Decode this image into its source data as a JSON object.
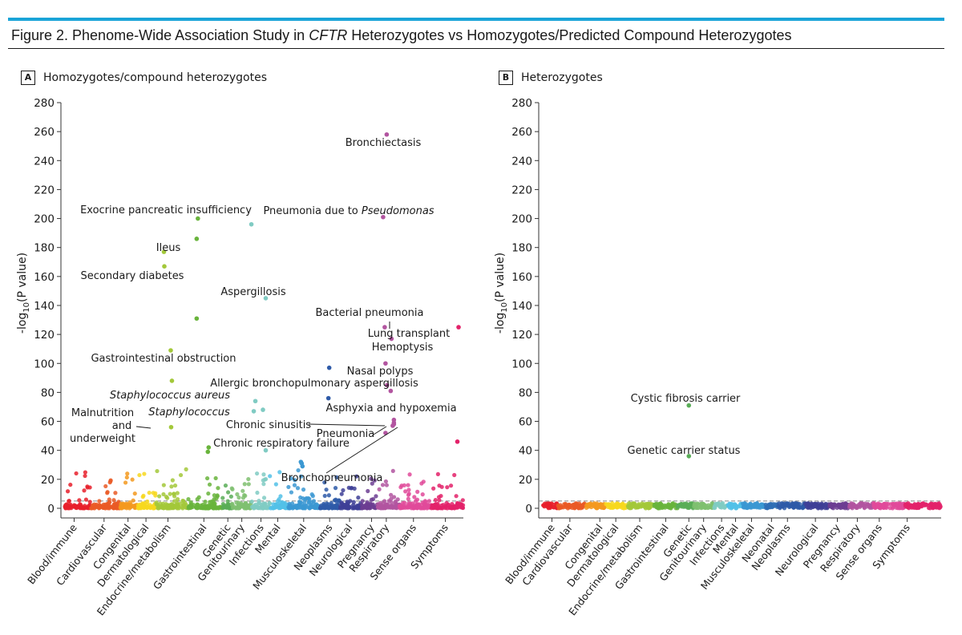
{
  "figure": {
    "title_prefix": "Figure 2. Phenome-Wide Association Study in ",
    "title_gene": "CFTR",
    "title_suffix": " Heterozygotes vs Homozygotes/Predicted Compound Heterozygotes",
    "accent_color": "#1aa4d8"
  },
  "panels": {
    "a": {
      "letter": "A",
      "title": "Homozygotes/compound heterozygotes"
    },
    "b": {
      "letter": "B",
      "title": "Heterozygotes"
    }
  },
  "chart_data": [
    {
      "type": "scatter",
      "panel": "A",
      "title": "Homozygotes/compound heterozygotes",
      "ylabel": "-log10(P value)",
      "ylabel_main": "-log",
      "ylabel_sub": "10",
      "ylabel_tail": "(P value)",
      "ylim": [
        -5,
        280
      ],
      "yticks": [
        0,
        20,
        40,
        60,
        80,
        100,
        120,
        140,
        160,
        180,
        200,
        220,
        240,
        260,
        280
      ],
      "threshold": 5,
      "x_extent": [
        0,
        100
      ],
      "categories": [
        {
          "name": "Blood/immune",
          "color": "#e8202c",
          "start": 0,
          "end": 6.5,
          "tick": 2.5
        },
        {
          "name": "Cardiovascular",
          "color": "#ea5a26",
          "start": 6.5,
          "end": 14,
          "tick": 10
        },
        {
          "name": "Congenital",
          "color": "#f3991f",
          "start": 14,
          "end": 18.5,
          "tick": 16
        },
        {
          "name": "Dermatological",
          "color": "#f7d81e",
          "start": 18.5,
          "end": 23,
          "tick": 20.5
        },
        {
          "name": "Endocrine/metabolism",
          "color": "#a3c83a",
          "start": 23,
          "end": 31,
          "tick": 26
        },
        {
          "name": "Gastrointestinal",
          "color": "#69b43c",
          "start": 31,
          "end": 39.5,
          "tick": 35
        },
        {
          "name": "Genetic",
          "color": "#59ad57",
          "start": 39.5,
          "end": 42,
          "tick": 41
        },
        {
          "name": "Genitourinary",
          "color": "#7fbf70",
          "start": 42,
          "end": 47,
          "tick": 44.5
        },
        {
          "name": "Infections",
          "color": "#80cbc3",
          "start": 47,
          "end": 51.5,
          "tick": 49.3
        },
        {
          "name": "Mental",
          "color": "#52c1e8",
          "start": 51.5,
          "end": 56,
          "tick": 53.5
        },
        {
          "name": "Musculoskeletal",
          "color": "#3b98d2",
          "start": 56,
          "end": 64,
          "tick": 60
        },
        {
          "name": "Neoplasms",
          "color": "#2e5aa8",
          "start": 64,
          "end": 69,
          "tick": 66.5
        },
        {
          "name": "Neurological",
          "color": "#3e3f97",
          "start": 69,
          "end": 74.5,
          "tick": 71.5
        },
        {
          "name": "Pregnancy",
          "color": "#6c3d92",
          "start": 74.5,
          "end": 78.5,
          "tick": 77
        },
        {
          "name": "Respiratory",
          "color": "#b255a0",
          "start": 78.5,
          "end": 84,
          "tick": 80.7
        },
        {
          "name": "Sense organs",
          "color": "#e04a9a",
          "start": 84,
          "end": 92,
          "tick": 87.5
        },
        {
          "name": "Symptoms",
          "color": "#e3226a",
          "start": 92,
          "end": 100,
          "tick": 95.5
        }
      ],
      "highlights": [
        {
          "label": "Bronchiectasis",
          "x": 80.8,
          "y": 258,
          "category": "Respiratory"
        },
        {
          "label": "Exocrine pancreatic insufficiency",
          "x": 33.5,
          "y": 200,
          "category": "Gastrointestinal"
        },
        {
          "label": "Pneumonia due to Pseudomonas",
          "x": 79.9,
          "y": 201,
          "category": "Respiratory"
        },
        {
          "label": "Ileus",
          "x": 33.2,
          "y": 186,
          "category": "Gastrointestinal"
        },
        {
          "label": "Secondary diabetes",
          "x": 25.1,
          "y": 167,
          "category": "Endocrine/metabolism"
        },
        {
          "label": "Aspergillosis",
          "x": 50.5,
          "y": 145,
          "category": "Infections"
        },
        {
          "label": "Bacterial pneumonia",
          "x": 80.3,
          "y": 125,
          "category": "Respiratory"
        },
        {
          "label": "Lung transplant",
          "x": 82.0,
          "y": 117,
          "category": "Respiratory"
        },
        {
          "label": "Hemoptysis",
          "x": 80.5,
          "y": 100,
          "category": "Respiratory"
        },
        {
          "label": "Gastrointestinal obstruction",
          "x": 26.7,
          "y": 109,
          "category": "Endocrine/metabolism"
        },
        {
          "label": "Nasal polyps",
          "x": 80.9,
          "y": 85,
          "category": "Respiratory"
        },
        {
          "label": "Allergic bronchopulmonary aspergillosis",
          "x": 81.8,
          "y": 81,
          "category": "Respiratory"
        },
        {
          "label": "Staphylococcus aureus",
          "x": 27.0,
          "y": 88,
          "category": "Endocrine/metabolism"
        },
        {
          "label": "Asphyxia and hypoxemia",
          "x": 82.6,
          "y": 61,
          "category": "Respiratory"
        },
        {
          "label": "Staphylococcus",
          "x": 47.9,
          "y": 74,
          "category": "Infections"
        },
        {
          "label": "Chronic sinusitis",
          "x": 82.6,
          "y": 58,
          "category": "Respiratory"
        },
        {
          "label": "Malnutrition and underweight",
          "x": 26.8,
          "y": 56,
          "category": "Endocrine/metabolism"
        },
        {
          "label": "Pneumonia",
          "x": 82.3,
          "y": 57,
          "category": "Respiratory"
        },
        {
          "label": "Chronic respiratory failure",
          "x": 80.5,
          "y": 52,
          "category": "Respiratory"
        },
        {
          "label": "Bronchopneumonia",
          "x": 82.6,
          "y": 59,
          "category": "Respiratory"
        }
      ],
      "other_points": [
        {
          "x": 25.0,
          "y": 177,
          "category": "Endocrine/metabolism"
        },
        {
          "x": 46.9,
          "y": 196,
          "category": "Infections"
        },
        {
          "x": 33.2,
          "y": 131,
          "category": "Gastrointestinal"
        },
        {
          "x": 98.8,
          "y": 125,
          "category": "Symptoms"
        },
        {
          "x": 66.4,
          "y": 97,
          "category": "Neoplasms"
        },
        {
          "x": 66.2,
          "y": 76,
          "category": "Neoplasms"
        },
        {
          "x": 98.5,
          "y": 46,
          "category": "Symptoms"
        },
        {
          "x": 50.5,
          "y": 40,
          "category": "Infections"
        },
        {
          "x": 36.2,
          "y": 42,
          "category": "Gastrointestinal"
        },
        {
          "x": 36.0,
          "y": 39,
          "category": "Gastrointestinal"
        },
        {
          "x": 59.5,
          "y": 31,
          "category": "Musculoskeletal"
        },
        {
          "x": 59.7,
          "y": 29,
          "category": "Musculoskeletal"
        },
        {
          "x": 59.3,
          "y": 32,
          "category": "Musculoskeletal"
        },
        {
          "x": 49.8,
          "y": 68,
          "category": "Infections"
        },
        {
          "x": 47.5,
          "y": 67,
          "category": "Infections"
        }
      ],
      "annotations": [
        {
          "text": "Bronchiectasis",
          "ax": 1.2,
          "ay": -6
        },
        {
          "text": "Exocrine pancreatic insufficiency",
          "ax": -22,
          "ay": 5
        },
        {
          "text": "Pneumonia due to ",
          "italic_tail": "Pseudomonas",
          "ax": -22,
          "ay": 0
        },
        {
          "text": "Ileus",
          "ax": 0.5,
          "ay": -5
        },
        {
          "text": "Secondary diabetes",
          "ax": -13,
          "ay": -8
        },
        {
          "text": "Aspergillosis",
          "ax": -4,
          "ay": 4
        }
      ]
    },
    {
      "type": "scatter",
      "panel": "B",
      "title": "Heterozygotes",
      "ylabel": "-log10(P value)",
      "ylabel_main": "-log",
      "ylabel_sub": "10",
      "ylabel_tail": "(P value)",
      "ylim": [
        -5,
        280
      ],
      "yticks": [
        0,
        20,
        40,
        60,
        80,
        100,
        120,
        140,
        160,
        180,
        200,
        220,
        240,
        260,
        280
      ],
      "threshold": 5,
      "x_extent": [
        0,
        100
      ],
      "categories": [
        {
          "name": "Blood/immune",
          "color": "#e8202c",
          "start": 0,
          "end": 4,
          "tick": 2.5
        },
        {
          "name": "Cardiovascular",
          "color": "#ea5a26",
          "start": 4,
          "end": 11,
          "tick": 7
        },
        {
          "name": "Congenital",
          "color": "#f3991f",
          "start": 11,
          "end": 16,
          "tick": 14.5
        },
        {
          "name": "Dermatological",
          "color": "#f7d81e",
          "start": 16,
          "end": 21.5,
          "tick": 18.5
        },
        {
          "name": "Endocrine/metabolism",
          "color": "#a3c83a",
          "start": 21.5,
          "end": 28,
          "tick": 24.5
        },
        {
          "name": "Gastrointestinal",
          "color": "#69b43c",
          "start": 28,
          "end": 34,
          "tick": 31
        },
        {
          "name": "Genetic",
          "color": "#59ad57",
          "start": 34,
          "end": 38,
          "tick": 36.8
        },
        {
          "name": "Genitourinary",
          "color": "#7fbf70",
          "start": 38,
          "end": 43,
          "tick": 40.5
        },
        {
          "name": "Infections",
          "color": "#80cbc3",
          "start": 43,
          "end": 46.5,
          "tick": 45
        },
        {
          "name": "Mental",
          "color": "#52c1e8",
          "start": 46.5,
          "end": 50,
          "tick": 48.5
        },
        {
          "name": "Musculoskeletal",
          "color": "#3b98d2",
          "start": 50,
          "end": 56,
          "tick": 52.5
        },
        {
          "name": "Neonatal",
          "color": "#2f6fb5",
          "start": 56,
          "end": 59,
          "tick": 57.5
        },
        {
          "name": "Neoplasms",
          "color": "#2e5aa8",
          "start": 59,
          "end": 66,
          "tick": 61.5
        },
        {
          "name": "Neurological",
          "color": "#3e3f97",
          "start": 66,
          "end": 72,
          "tick": 68.5
        },
        {
          "name": "Pregnancy",
          "color": "#6c3d92",
          "start": 72,
          "end": 77,
          "tick": 74
        },
        {
          "name": "Respiratory",
          "color": "#b255a0",
          "start": 77,
          "end": 83,
          "tick": 79
        },
        {
          "name": "Sense organs",
          "color": "#e04a9a",
          "start": 83,
          "end": 91,
          "tick": 84.5
        },
        {
          "name": "Symptoms",
          "color": "#e3226a",
          "start": 91,
          "end": 100,
          "tick": 91.5
        }
      ],
      "highlights": [
        {
          "label": "Cystic fibrosis carrier",
          "x": 36.8,
          "y": 71,
          "category": "Genetic"
        },
        {
          "label": "Genetic carrier status",
          "x": 36.8,
          "y": 36,
          "category": "Genetic"
        }
      ],
      "other_points": []
    }
  ]
}
